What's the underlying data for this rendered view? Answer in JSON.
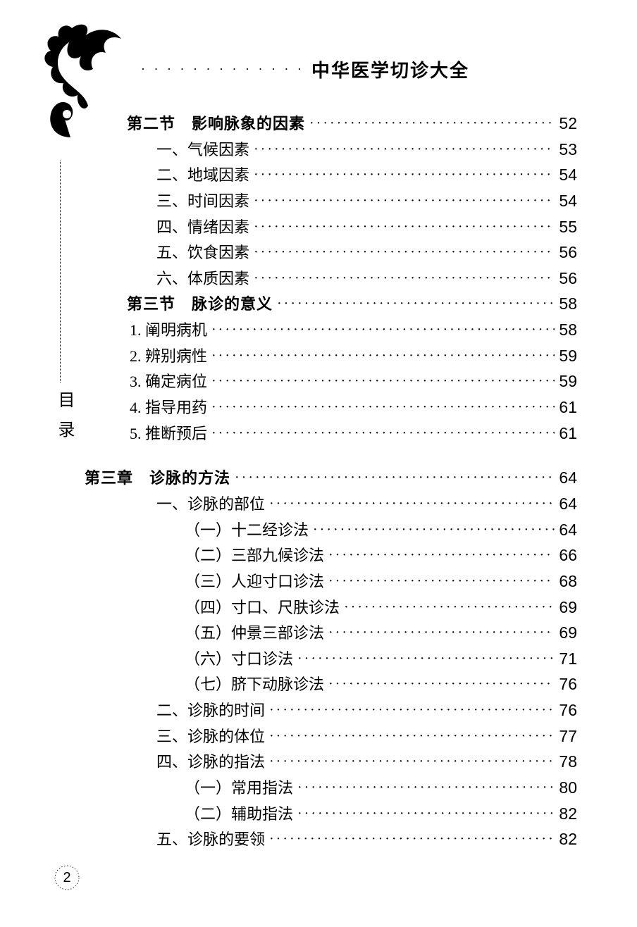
{
  "header": {
    "title": "中华医学切诊大全"
  },
  "side_label": "目录",
  "page_number": "2",
  "colors": {
    "text": "#000000",
    "background": "#ffffff"
  },
  "typography": {
    "body_fontsize": 22,
    "header_fontsize": 26,
    "page_number_fontsize": 20
  },
  "toc": [
    {
      "label": "第二节　影响脉象的因素",
      "page": "52",
      "indent": 1,
      "bold": true
    },
    {
      "label": "一、气候因素",
      "page": "53",
      "indent": 3,
      "bold": false
    },
    {
      "label": "二、地域因素",
      "page": "54",
      "indent": 3,
      "bold": false
    },
    {
      "label": "三、时间因素",
      "page": "54",
      "indent": 3,
      "bold": false
    },
    {
      "label": "四、情绪因素",
      "page": "55",
      "indent": 3,
      "bold": false
    },
    {
      "label": "五、饮食因素",
      "page": "56",
      "indent": 3,
      "bold": false
    },
    {
      "label": "六、体质因素",
      "page": "56",
      "indent": 3,
      "bold": false
    },
    {
      "label": "第三节　脉诊的意义",
      "page": "58",
      "indent": 1,
      "bold": true
    },
    {
      "label": "1. 阐明病机",
      "page": "58",
      "indent": 2,
      "bold": false
    },
    {
      "label": "2. 辨别病性",
      "page": "59",
      "indent": 2,
      "bold": false
    },
    {
      "label": "3. 确定病位",
      "page": "59",
      "indent": 2,
      "bold": false
    },
    {
      "label": "4. 指导用药",
      "page": "61",
      "indent": 2,
      "bold": false
    },
    {
      "label": "5. 推断预后",
      "page": "61",
      "indent": 2,
      "bold": false
    },
    {
      "label": "第三章　诊脉的方法",
      "page": "64",
      "indent": 0,
      "bold": true,
      "gap": true
    },
    {
      "label": "一、诊脉的部位",
      "page": "64",
      "indent": 3,
      "bold": false
    },
    {
      "label": "（一）十二经诊法",
      "page": "64",
      "indent": 4,
      "bold": false
    },
    {
      "label": "（二）三部九候诊法",
      "page": "66",
      "indent": 4,
      "bold": false
    },
    {
      "label": "（三）人迎寸口诊法",
      "page": "68",
      "indent": 4,
      "bold": false
    },
    {
      "label": "（四）寸口、尺肤诊法",
      "page": "69",
      "indent": 4,
      "bold": false
    },
    {
      "label": "（五）仲景三部诊法",
      "page": "69",
      "indent": 4,
      "bold": false
    },
    {
      "label": "（六）寸口诊法",
      "page": "71",
      "indent": 4,
      "bold": false
    },
    {
      "label": "（七）脐下动脉诊法",
      "page": "76",
      "indent": 4,
      "bold": false
    },
    {
      "label": "二、诊脉的时间",
      "page": "76",
      "indent": 3,
      "bold": false
    },
    {
      "label": "三、诊脉的体位",
      "page": "77",
      "indent": 3,
      "bold": false
    },
    {
      "label": "四、诊脉的指法",
      "page": "78",
      "indent": 3,
      "bold": false
    },
    {
      "label": "（一）常用指法",
      "page": "80",
      "indent": 4,
      "bold": false
    },
    {
      "label": "（二）辅助指法",
      "page": "82",
      "indent": 4,
      "bold": false
    },
    {
      "label": "五、诊脉的要领",
      "page": "82",
      "indent": 3,
      "bold": false
    }
  ]
}
